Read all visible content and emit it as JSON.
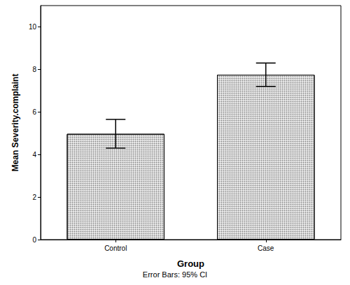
{
  "chart_data": {
    "type": "bar",
    "x_label": "Group",
    "y_label": "Mean Severity.complaint",
    "annotation": "Error Bars: 95% CI",
    "categories": [
      "Control",
      "Case"
    ],
    "values": [
      4.97,
      7.75
    ],
    "error_low": [
      4.3,
      7.2
    ],
    "error_high": [
      5.65,
      8.3
    ],
    "color": "#ececec",
    "ylim": [
      0,
      11
    ],
    "yticks": [
      0,
      2,
      4,
      6,
      8,
      10
    ],
    "grid": false
  }
}
